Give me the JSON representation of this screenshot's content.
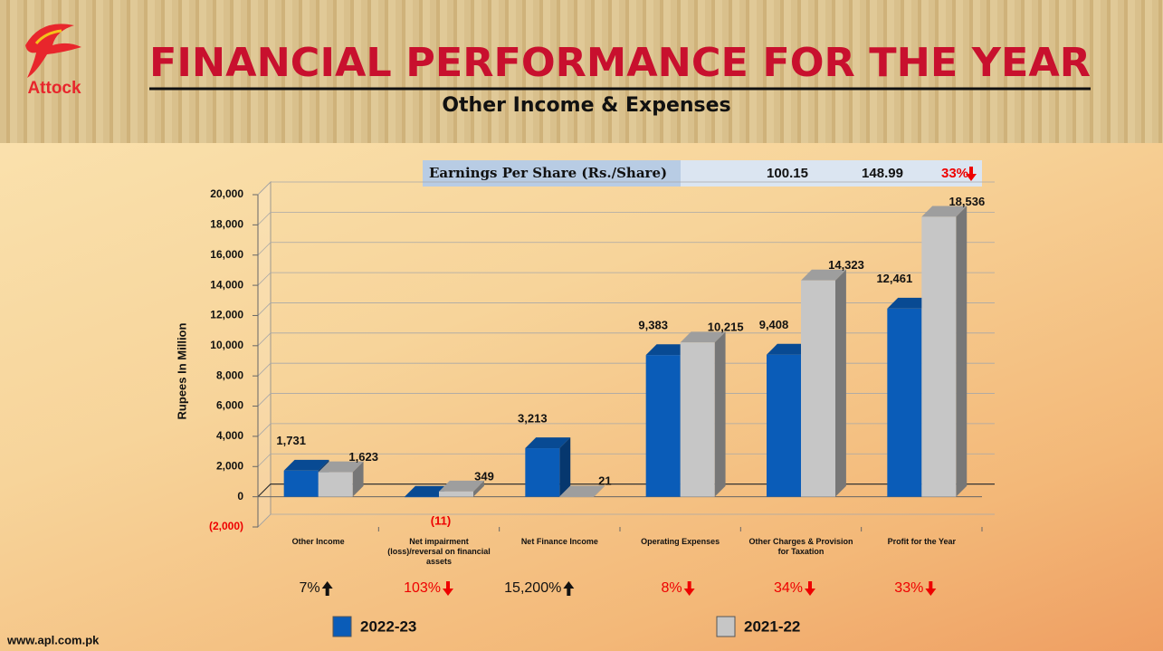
{
  "header": {
    "logo_text": "Attock",
    "title": "FINANCIAL PERFORMANCE FOR THE YEAR",
    "subtitle": "Other Income & Expenses"
  },
  "eps": {
    "label": "Earnings Per Share (Rs./Share)",
    "values": [
      100.15,
      148.99
    ],
    "change": {
      "label": "33%",
      "direction": "down"
    }
  },
  "chart_data": {
    "type": "bar3d",
    "y_label": "Rupees In Million",
    "categories": [
      "Other Income",
      "Net impairment (loss)/reversal on financial assets",
      "Net Finance Income",
      "Operating Expenses",
      "Other Charges & Provision for Taxation",
      "Profit for the Year"
    ],
    "series": [
      {
        "name": "2022-23",
        "color": "#0a5cb8",
        "values": [
          1731,
          -11,
          3213,
          9383,
          9408,
          12461
        ],
        "value_labels": [
          "1,731",
          "(11)",
          "3,213",
          "9,383",
          "9,408",
          "12,461"
        ]
      },
      {
        "name": "2021-22",
        "color": "#c6c6c6",
        "values": [
          1623,
          349,
          21,
          10215,
          14323,
          18536
        ],
        "value_labels": [
          "1,623",
          "349",
          "21",
          "10,215",
          "14,323",
          "18,536"
        ]
      }
    ],
    "ylim": [
      -2000,
      20000
    ],
    "yticks": [
      {
        "value": -2000,
        "label": "(2,000)"
      },
      0,
      {
        "value": 2000,
        "label": "2,000"
      },
      {
        "value": 4000,
        "label": "4,000"
      },
      {
        "value": 6000,
        "label": "6,000"
      },
      {
        "value": 8000,
        "label": "8,000"
      },
      {
        "value": 10000,
        "label": "10,000"
      },
      {
        "value": 12000,
        "label": "12,000"
      },
      {
        "value": 14000,
        "label": "14,000"
      },
      {
        "value": 16000,
        "label": "16,000"
      },
      {
        "value": 18000,
        "label": "18,000"
      },
      {
        "value": 20000,
        "label": "20,000"
      }
    ],
    "grid": true,
    "changes": [
      {
        "label": "7%",
        "direction": "up"
      },
      {
        "label": "103%",
        "direction": "down"
      },
      {
        "label": "15,200%",
        "direction": "up"
      },
      {
        "label": "8%",
        "direction": "down"
      },
      {
        "label": "34%",
        "direction": "down"
      },
      {
        "label": "33%",
        "direction": "down"
      }
    ]
  },
  "footer": {
    "url": "www.apl.com.pk"
  }
}
